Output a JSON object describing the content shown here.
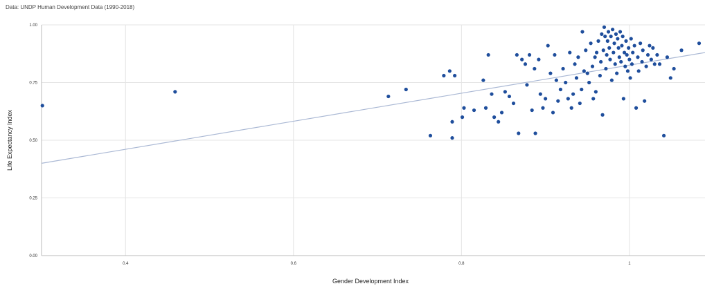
{
  "source_note": "Data: UNDP Human Development Data (1990-2018)",
  "chart_data": {
    "type": "scatter",
    "xlabel": "Gender Development Index",
    "ylabel": "Life Expectancy Index",
    "xlim": [
      0.3,
      1.09
    ],
    "ylim": [
      0.0,
      1.0
    ],
    "x_ticks": [
      0.4,
      0.6,
      0.8,
      1.0
    ],
    "x_tick_labels": [
      "0.4",
      "0.6",
      "0.8",
      "1"
    ],
    "y_ticks": [
      0.0,
      0.25,
      0.5,
      0.75,
      1.0
    ],
    "y_tick_labels": [
      "0.00",
      "0.25",
      "0.50",
      "0.75",
      "1.00"
    ],
    "grid": true,
    "point_color": "#1f4e9c",
    "trendline": {
      "color": "#aab8d4",
      "x": [
        0.3,
        1.09
      ],
      "y": [
        0.4,
        0.88
      ]
    },
    "series": [
      {
        "points": [
          [
            0.301,
            0.65
          ],
          [
            0.459,
            0.71
          ],
          [
            0.713,
            0.69
          ],
          [
            0.734,
            0.72
          ],
          [
            0.763,
            0.52
          ],
          [
            0.779,
            0.78
          ],
          [
            0.786,
            0.8
          ],
          [
            0.789,
            0.51
          ],
          [
            0.789,
            0.58
          ],
          [
            0.792,
            0.78
          ],
          [
            0.801,
            0.6
          ],
          [
            0.803,
            0.64
          ],
          [
            0.815,
            0.63
          ],
          [
            0.826,
            0.76
          ],
          [
            0.829,
            0.64
          ],
          [
            0.832,
            0.87
          ],
          [
            0.836,
            0.7
          ],
          [
            0.839,
            0.6
          ],
          [
            0.844,
            0.58
          ],
          [
            0.848,
            0.62
          ],
          [
            0.852,
            0.71
          ],
          [
            0.857,
            0.69
          ],
          [
            0.862,
            0.66
          ],
          [
            0.866,
            0.87
          ],
          [
            0.868,
            0.53
          ],
          [
            0.872,
            0.85
          ],
          [
            0.876,
            0.83
          ],
          [
            0.878,
            0.74
          ],
          [
            0.881,
            0.87
          ],
          [
            0.884,
            0.63
          ],
          [
            0.887,
            0.81
          ],
          [
            0.888,
            0.53
          ],
          [
            0.892,
            0.85
          ],
          [
            0.894,
            0.7
          ],
          [
            0.897,
            0.64
          ],
          [
            0.9,
            0.68
          ],
          [
            0.903,
            0.91
          ],
          [
            0.906,
            0.79
          ],
          [
            0.909,
            0.62
          ],
          [
            0.911,
            0.87
          ],
          [
            0.913,
            0.76
          ],
          [
            0.915,
            0.67
          ],
          [
            0.918,
            0.72
          ],
          [
            0.921,
            0.81
          ],
          [
            0.924,
            0.75
          ],
          [
            0.927,
            0.68
          ],
          [
            0.929,
            0.88
          ],
          [
            0.931,
            0.64
          ],
          [
            0.933,
            0.7
          ],
          [
            0.935,
            0.83
          ],
          [
            0.937,
            0.77
          ],
          [
            0.939,
            0.86
          ],
          [
            0.941,
            0.66
          ],
          [
            0.943,
            0.72
          ],
          [
            0.944,
            0.97
          ],
          [
            0.946,
            0.8
          ],
          [
            0.948,
            0.89
          ],
          [
            0.95,
            0.79
          ],
          [
            0.952,
            0.75
          ],
          [
            0.954,
            0.92
          ],
          [
            0.956,
            0.82
          ],
          [
            0.957,
            0.68
          ],
          [
            0.959,
            0.86
          ],
          [
            0.96,
            0.71
          ],
          [
            0.961,
            0.88
          ],
          [
            0.963,
            0.93
          ],
          [
            0.965,
            0.78
          ],
          [
            0.966,
            0.84
          ],
          [
            0.967,
            0.96
          ],
          [
            0.968,
            0.61
          ],
          [
            0.969,
            0.89
          ],
          [
            0.97,
            0.99
          ],
          [
            0.971,
            0.95
          ],
          [
            0.972,
            0.81
          ],
          [
            0.973,
            0.87
          ],
          [
            0.974,
            0.93
          ],
          [
            0.975,
            0.97
          ],
          [
            0.976,
            0.9
          ],
          [
            0.977,
            0.85
          ],
          [
            0.978,
            0.95
          ],
          [
            0.979,
            0.76
          ],
          [
            0.98,
            0.98
          ],
          [
            0.981,
            0.88
          ],
          [
            0.982,
            0.92
          ],
          [
            0.983,
            0.83
          ],
          [
            0.984,
            0.96
          ],
          [
            0.985,
            0.79
          ],
          [
            0.986,
            0.94
          ],
          [
            0.987,
            0.9
          ],
          [
            0.988,
            0.86
          ],
          [
            0.989,
            0.97
          ],
          [
            0.99,
            0.84
          ],
          [
            0.991,
            0.91
          ],
          [
            0.992,
            0.95
          ],
          [
            0.993,
            0.68
          ],
          [
            0.994,
            0.88
          ],
          [
            0.995,
            0.82
          ],
          [
            0.996,
            0.93
          ],
          [
            0.997,
            0.87
          ],
          [
            0.998,
            0.8
          ],
          [
            0.999,
            0.9
          ],
          [
            1.0,
            0.85
          ],
          [
            1.001,
            0.77
          ],
          [
            1.002,
            0.94
          ],
          [
            1.003,
            0.83
          ],
          [
            1.004,
            0.88
          ],
          [
            1.006,
            0.91
          ],
          [
            1.008,
            0.64
          ],
          [
            1.01,
            0.86
          ],
          [
            1.011,
            0.8
          ],
          [
            1.013,
            0.92
          ],
          [
            1.015,
            0.84
          ],
          [
            1.016,
            0.89
          ],
          [
            1.018,
            0.67
          ],
          [
            1.02,
            0.82
          ],
          [
            1.022,
            0.87
          ],
          [
            1.024,
            0.91
          ],
          [
            1.026,
            0.85
          ],
          [
            1.028,
            0.9
          ],
          [
            1.03,
            0.83
          ],
          [
            1.033,
            0.87
          ],
          [
            1.036,
            0.83
          ],
          [
            1.041,
            0.52
          ],
          [
            1.045,
            0.86
          ],
          [
            1.049,
            0.77
          ],
          [
            1.053,
            0.81
          ],
          [
            1.062,
            0.89
          ],
          [
            1.083,
            0.92
          ]
        ]
      }
    ]
  }
}
